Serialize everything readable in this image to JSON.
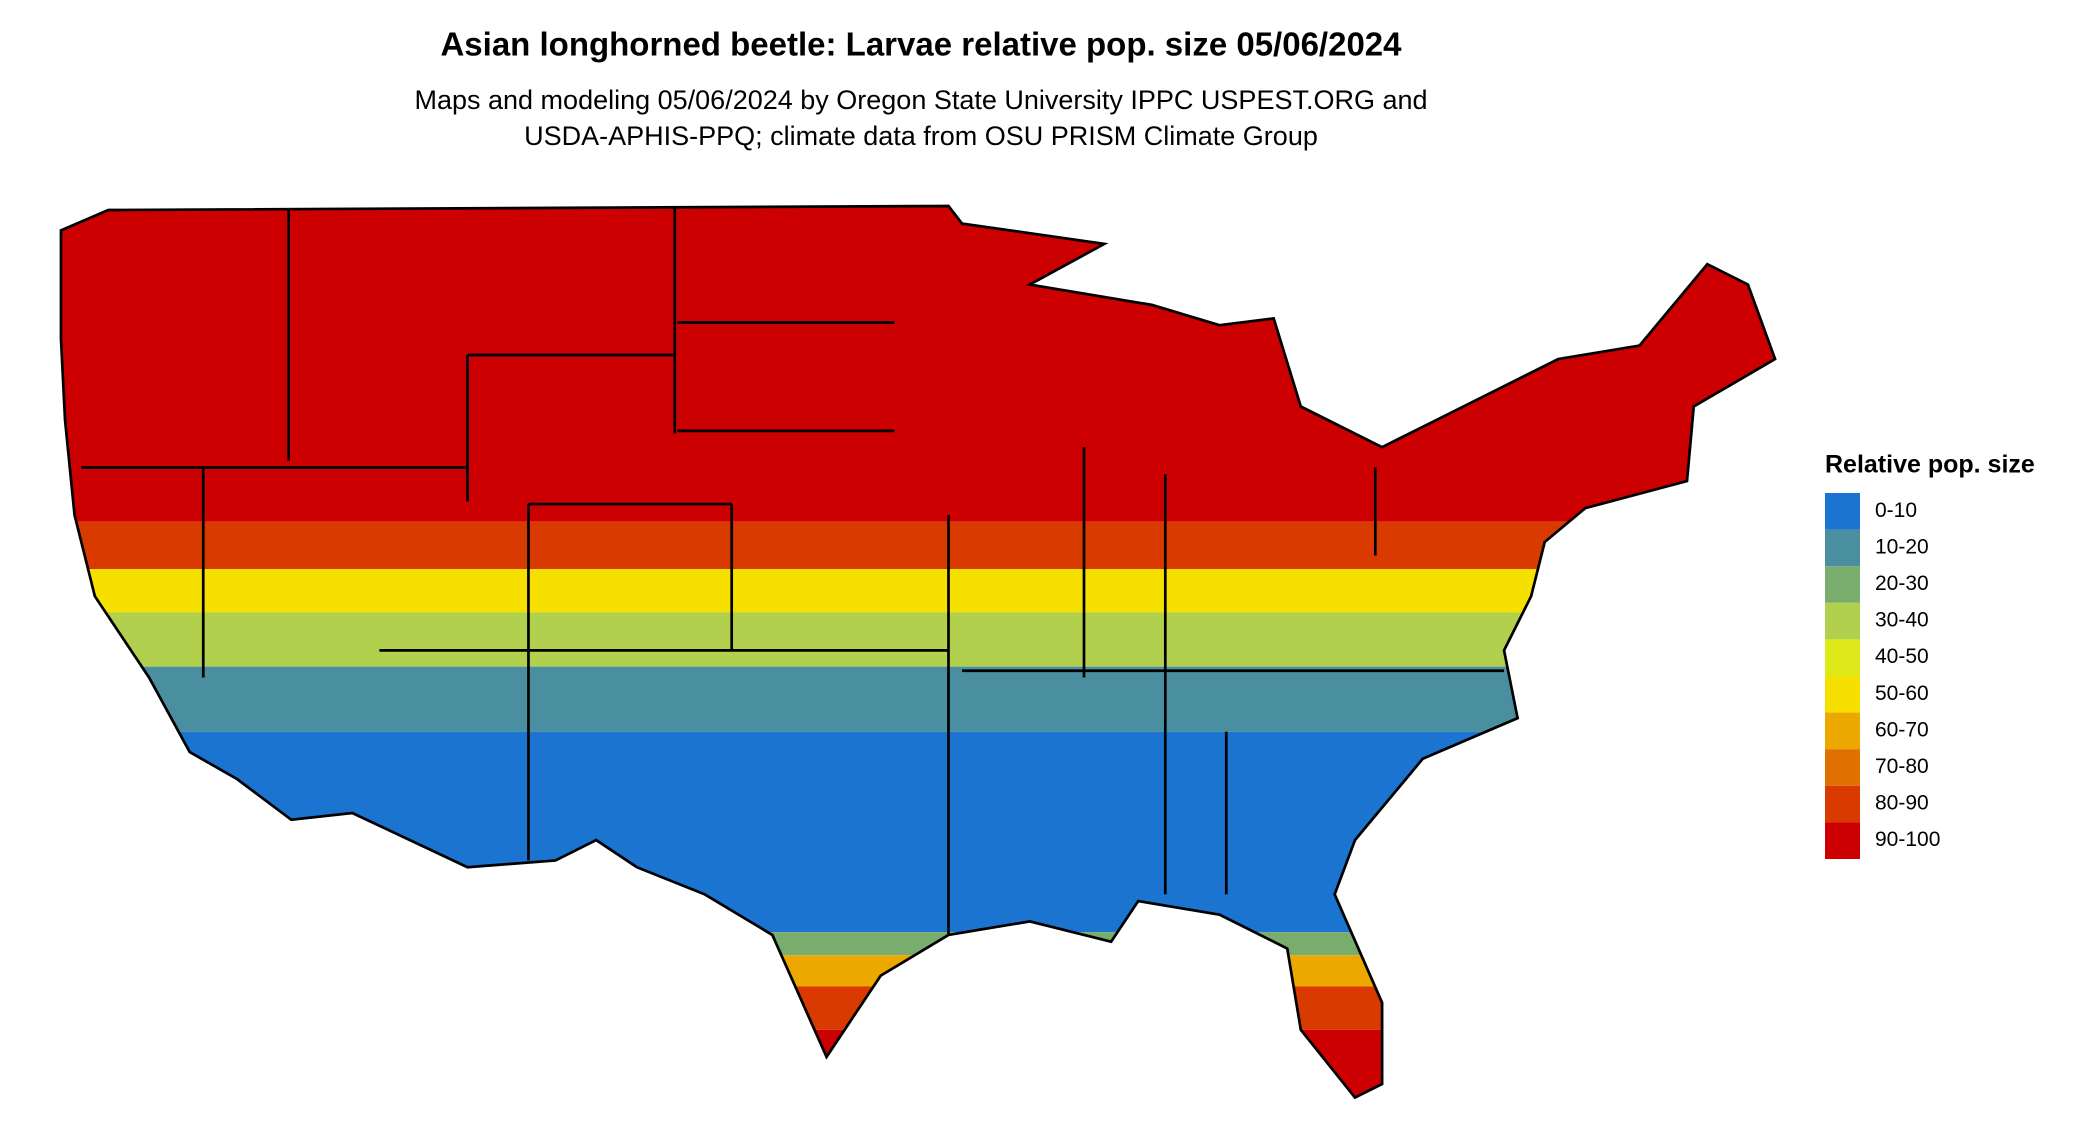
{
  "title": "Asian longhorned beetle: Larvae relative pop. size 05/06/2024",
  "subtitle": [
    "Maps and modeling 05/06/2024 by Oregon State University IPPC USPEST.ORG and",
    "USDA-APHIS-PPQ; climate data from OSU PRISM Climate Group"
  ],
  "legend": {
    "title": "Relative pop. size",
    "items": [
      {
        "label": "0-10",
        "color": "#1a74d0"
      },
      {
        "label": "10-20",
        "color": "#4a8fa0"
      },
      {
        "label": "20-30",
        "color": "#78ad6e"
      },
      {
        "label": "30-40",
        "color": "#b0d04e"
      },
      {
        "label": "40-50",
        "color": "#dfe91a"
      },
      {
        "label": "50-60",
        "color": "#f5e000"
      },
      {
        "label": "60-70",
        "color": "#eda800"
      },
      {
        "label": "70-80",
        "color": "#e07000"
      },
      {
        "label": "80-90",
        "color": "#d83a00"
      },
      {
        "label": "90-100",
        "color": "#cc0000"
      }
    ]
  }
}
